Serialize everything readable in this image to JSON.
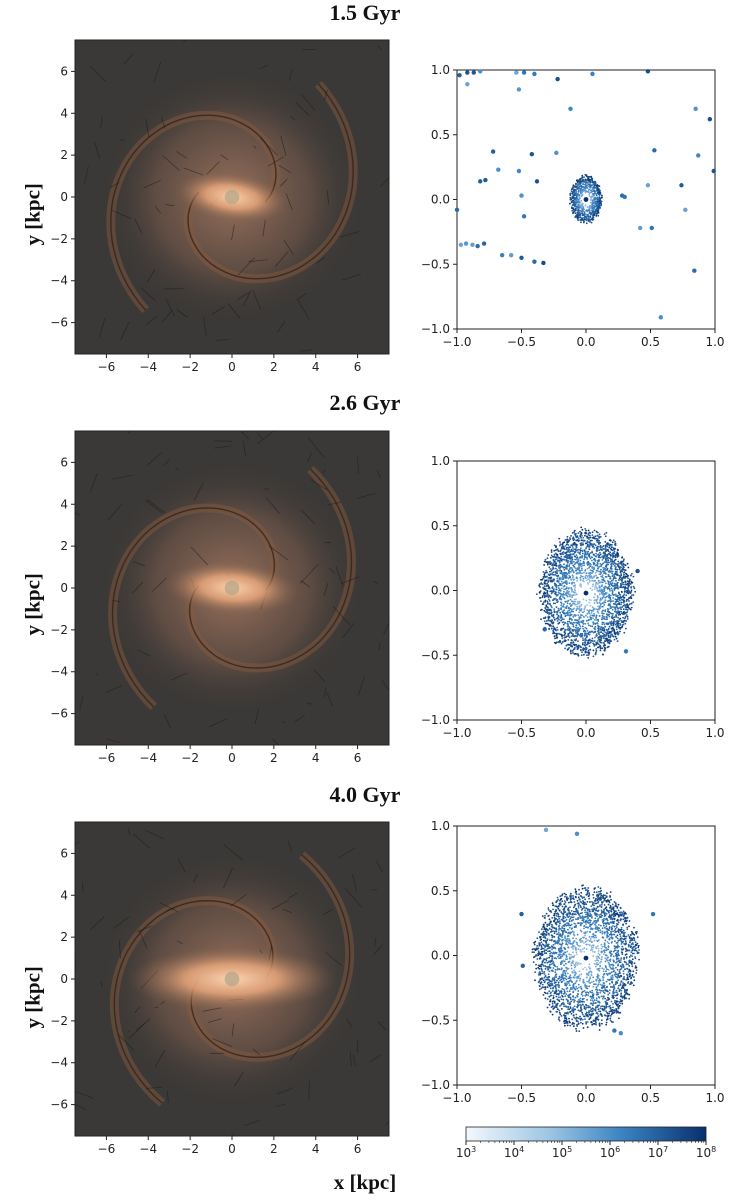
{
  "figure": {
    "xlabel": "x [kpc]",
    "ylabel": "y [kpc]"
  },
  "colorbar": {
    "ticks": [
      "10",
      "10",
      "10",
      "10",
      "10",
      "10"
    ],
    "exponents": [
      "3",
      "4",
      "5",
      "6",
      "7",
      "8"
    ],
    "colors": [
      "#f4f8fd",
      "#08306b"
    ],
    "scale": "log"
  },
  "panels": [
    {
      "title": "1.5 Gyr",
      "map": {
        "x_ticks": [
          "−6",
          "−4",
          "−2",
          "0",
          "2",
          "4",
          "6"
        ],
        "y_ticks": [
          "6",
          "4",
          "2",
          "0",
          "−2",
          "−4",
          "−6"
        ],
        "xlim": [
          -7.5,
          7.5
        ],
        "ylim": [
          -7.5,
          7.5
        ]
      },
      "scatter": {
        "x_ticks": [
          "−1.0",
          "−0.5",
          "0.0",
          "0.5",
          "1.0"
        ],
        "y_ticks": [
          "1.0",
          "0.5",
          "0.0",
          "−0.5",
          "−1.0"
        ],
        "xlim": [
          -1,
          1
        ],
        "ylim": [
          -1,
          1
        ]
      }
    },
    {
      "title": "2.6 Gyr",
      "map": {
        "x_ticks": [
          "−6",
          "−4",
          "−2",
          "0",
          "2",
          "4",
          "6"
        ],
        "y_ticks": [
          "6",
          "4",
          "2",
          "0",
          "−2",
          "−4",
          "−6"
        ],
        "xlim": [
          -7.5,
          7.5
        ],
        "ylim": [
          -7.5,
          7.5
        ]
      },
      "scatter": {
        "x_ticks": [
          "−1.0",
          "−0.5",
          "0.0",
          "0.5",
          "1.0"
        ],
        "y_ticks": [
          "1.0",
          "0.5",
          "0.0",
          "−0.5",
          "−1.0"
        ],
        "xlim": [
          -1,
          1
        ],
        "ylim": [
          -1,
          1
        ]
      }
    },
    {
      "title": "4.0 Gyr",
      "map": {
        "x_ticks": [
          "−6",
          "−4",
          "−2",
          "0",
          "2",
          "4",
          "6"
        ],
        "y_ticks": [
          "6",
          "4",
          "2",
          "0",
          "−2",
          "−4",
          "−6"
        ],
        "xlim": [
          -7.5,
          7.5
        ],
        "ylim": [
          -7.5,
          7.5
        ]
      },
      "scatter": {
        "x_ticks": [
          "−1.0",
          "−0.5",
          "0.0",
          "0.5",
          "1.0"
        ],
        "y_ticks": [
          "1.0",
          "0.5",
          "0.0",
          "−0.5",
          "−1.0"
        ],
        "xlim": [
          -1,
          1
        ],
        "ylim": [
          -1,
          1
        ]
      }
    }
  ],
  "chart_data": [
    {
      "type": "heatmap",
      "panel": "1.5 Gyr",
      "xlim": [
        -7.5,
        7.5
      ],
      "ylim": [
        -7.5,
        7.5
      ],
      "xlabel": "x [kpc]",
      "ylabel": "y [kpc]",
      "bar_angle_deg": -8,
      "bar_half_length_kpc": 2.8,
      "bar_half_width_kpc": 1.2,
      "spiral_arms": 2
    },
    {
      "type": "scatter",
      "panel": "1.5 Gyr",
      "xlim": [
        -1,
        1
      ],
      "ylim": [
        -1,
        1
      ],
      "ring": {
        "center": [
          0.0,
          0.0
        ],
        "inner_radius": [
          0.03,
          0.04
        ],
        "outer_radius": [
          0.12,
          0.18
        ]
      },
      "outliers": [
        [
          -0.98,
          0.96
        ],
        [
          -0.92,
          0.98
        ],
        [
          -0.87,
          0.98
        ],
        [
          -0.82,
          0.99
        ],
        [
          -0.92,
          0.89
        ],
        [
          -0.54,
          0.98
        ],
        [
          -0.48,
          0.98
        ],
        [
          -0.4,
          0.97
        ],
        [
          -0.52,
          0.85
        ],
        [
          -0.22,
          0.93
        ],
        [
          -0.12,
          0.7
        ],
        [
          0.05,
          0.97
        ],
        [
          0.48,
          0.99
        ],
        [
          0.85,
          0.7
        ],
        [
          0.96,
          0.62
        ],
        [
          0.87,
          0.34
        ],
        [
          0.99,
          0.22
        ],
        [
          0.74,
          0.11
        ],
        [
          0.53,
          0.38
        ],
        [
          0.48,
          0.11
        ],
        [
          -0.72,
          0.37
        ],
        [
          -0.78,
          0.15
        ],
        [
          -0.82,
          0.14
        ],
        [
          -0.68,
          0.23
        ],
        [
          -0.52,
          0.22
        ],
        [
          -0.38,
          0.14
        ],
        [
          -0.23,
          0.36
        ],
        [
          -0.42,
          0.35
        ],
        [
          -0.5,
          0.03
        ],
        [
          -0.48,
          -0.13
        ],
        [
          -1.0,
          -0.08
        ],
        [
          -0.97,
          -0.35
        ],
        [
          -0.93,
          -0.34
        ],
        [
          -0.88,
          -0.35
        ],
        [
          -0.84,
          -0.36
        ],
        [
          -0.79,
          -0.34
        ],
        [
          -0.65,
          -0.43
        ],
        [
          -0.58,
          -0.43
        ],
        [
          -0.5,
          -0.45
        ],
        [
          -0.4,
          -0.48
        ],
        [
          -0.33,
          -0.49
        ],
        [
          0.28,
          0.03
        ],
        [
          0.42,
          -0.22
        ],
        [
          0.51,
          -0.22
        ],
        [
          0.77,
          -0.08
        ],
        [
          0.84,
          -0.55
        ],
        [
          0.58,
          -0.91
        ],
        [
          0.3,
          0.02
        ]
      ],
      "color_scale": "log",
      "clim": [
        1000,
        100000000
      ]
    },
    {
      "type": "heatmap",
      "panel": "2.6 Gyr",
      "xlim": [
        -7.5,
        7.5
      ],
      "ylim": [
        -7.5,
        7.5
      ],
      "xlabel": "x [kpc]",
      "ylabel": "y [kpc]",
      "bar_angle_deg": -4,
      "bar_half_length_kpc": 3.3,
      "bar_half_width_kpc": 1.3,
      "spiral_arms": 2
    },
    {
      "type": "scatter",
      "panel": "2.6 Gyr",
      "xlim": [
        -1,
        1
      ],
      "ylim": [
        -1,
        1
      ],
      "ring": {
        "center": [
          0.0,
          -0.02
        ],
        "inner_radius": [
          0.05,
          0.05
        ],
        "outer_radius": [
          0.36,
          0.48
        ]
      },
      "outliers": [
        [
          0.31,
          -0.47
        ],
        [
          -0.32,
          -0.3
        ],
        [
          0.4,
          0.15
        ]
      ],
      "color_scale": "log",
      "clim": [
        1000,
        100000000
      ]
    },
    {
      "type": "heatmap",
      "panel": "4.0 Gyr",
      "xlim": [
        -7.5,
        7.5
      ],
      "ylim": [
        -7.5,
        7.5
      ],
      "xlabel": "x [kpc]",
      "ylabel": "y [kpc]",
      "bar_angle_deg": 0,
      "bar_half_length_kpc": 5.0,
      "bar_half_width_kpc": 1.6,
      "spiral_arms": 2
    },
    {
      "type": "scatter",
      "panel": "4.0 Gyr",
      "xlim": [
        -1,
        1
      ],
      "ylim": [
        -1,
        1
      ],
      "ring": {
        "center": [
          0.0,
          -0.02
        ],
        "inner_radius": [
          0.05,
          0.05
        ],
        "outer_radius": [
          0.4,
          0.54
        ]
      },
      "outliers": [
        [
          -0.31,
          0.97
        ],
        [
          -0.07,
          0.94
        ],
        [
          -0.5,
          0.32
        ],
        [
          0.52,
          0.32
        ],
        [
          -0.49,
          -0.08
        ],
        [
          0.22,
          -0.58
        ],
        [
          0.27,
          -0.6
        ]
      ],
      "color_scale": "log",
      "clim": [
        1000,
        100000000
      ]
    }
  ]
}
